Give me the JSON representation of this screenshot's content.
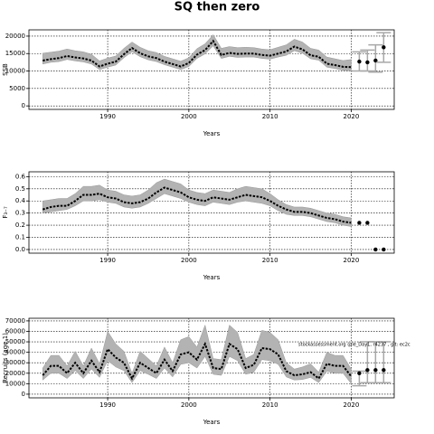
{
  "title": "SQ then zero",
  "chart_data": [
    {
      "type": "line",
      "ylabel": "SSB",
      "xlabel": "Years",
      "x": [
        1982,
        1983,
        1984,
        1985,
        1986,
        1987,
        1988,
        1989,
        1990,
        1991,
        1992,
        1993,
        1994,
        1995,
        1996,
        1997,
        1998,
        1999,
        2000,
        2001,
        2002,
        2003,
        2004,
        2005,
        2006,
        2007,
        2008,
        2009,
        2010,
        2011,
        2012,
        2013,
        2014,
        2015,
        2016,
        2017,
        2018,
        2019,
        2020
      ],
      "values": [
        13000,
        13400,
        13700,
        14300,
        13900,
        13600,
        13000,
        11300,
        12100,
        12700,
        14800,
        16600,
        15100,
        14200,
        13700,
        12700,
        12000,
        11300,
        12300,
        14700,
        16000,
        18600,
        14600,
        15200,
        14900,
        15000,
        15000,
        14600,
        14400,
        15000,
        15600,
        17000,
        16200,
        14500,
        14100,
        12100,
        11700,
        11200,
        11100
      ],
      "lower": [
        12000,
        12500,
        12700,
        13300,
        12900,
        12600,
        12000,
        10400,
        11100,
        11700,
        13800,
        15500,
        14100,
        13200,
        12700,
        11800,
        11100,
        10400,
        11300,
        13600,
        14900,
        17200,
        13600,
        14200,
        13900,
        14000,
        14000,
        13600,
        13400,
        14000,
        14500,
        15800,
        15100,
        13500,
        13100,
        11100,
        10700,
        10200,
        10000
      ],
      "upper": [
        15100,
        15400,
        15700,
        16300,
        15800,
        15500,
        14800,
        12900,
        13700,
        14300,
        16500,
        18300,
        16800,
        15800,
        15300,
        14200,
        13500,
        12800,
        13800,
        16400,
        17800,
        20400,
        16500,
        17000,
        16700,
        16800,
        16700,
        16300,
        16100,
        16800,
        17500,
        19100,
        18300,
        16500,
        16000,
        14000,
        13500,
        13000,
        13300
      ],
      "proj_x": [
        2021,
        2022,
        2023,
        2024
      ],
      "proj_values": [
        12700,
        12500,
        13000,
        16800
      ],
      "proj_lower": [
        10000,
        10000,
        9700,
        12500
      ],
      "proj_upper": [
        15500,
        16000,
        17500,
        21000
      ],
      "xlim": [
        1980.3,
        2025.3
      ],
      "ylim": [
        -1000,
        21800
      ],
      "xticks": [
        1990,
        2000,
        2010,
        2020
      ],
      "yticks": [
        0,
        5000,
        10000,
        15000,
        20000
      ],
      "grid": true,
      "color": "#000000",
      "band_color": "#b3b3b3",
      "proj_bar_color": "#a8a8a8"
    },
    {
      "type": "line",
      "ylabel": "F₃₋₇",
      "xlabel": "Years",
      "x": [
        1982,
        1983,
        1984,
        1985,
        1986,
        1987,
        1988,
        1989,
        1990,
        1991,
        1992,
        1993,
        1994,
        1995,
        1996,
        1997,
        1998,
        1999,
        2000,
        2001,
        2002,
        2003,
        2004,
        2005,
        2006,
        2007,
        2008,
        2009,
        2010,
        2011,
        2012,
        2013,
        2014,
        2015,
        2016,
        2017,
        2018,
        2019,
        2020
      ],
      "values": [
        0.33,
        0.35,
        0.36,
        0.36,
        0.4,
        0.45,
        0.45,
        0.46,
        0.43,
        0.42,
        0.39,
        0.38,
        0.39,
        0.42,
        0.47,
        0.51,
        0.49,
        0.47,
        0.43,
        0.41,
        0.4,
        0.43,
        0.42,
        0.41,
        0.43,
        0.45,
        0.44,
        0.43,
        0.4,
        0.36,
        0.33,
        0.31,
        0.31,
        0.3,
        0.28,
        0.26,
        0.25,
        0.23,
        0.22
      ],
      "lower": [
        0.3,
        0.31,
        0.32,
        0.33,
        0.36,
        0.4,
        0.4,
        0.41,
        0.39,
        0.38,
        0.35,
        0.34,
        0.35,
        0.38,
        0.42,
        0.46,
        0.44,
        0.42,
        0.39,
        0.37,
        0.36,
        0.39,
        0.38,
        0.37,
        0.39,
        0.4,
        0.39,
        0.38,
        0.36,
        0.32,
        0.29,
        0.28,
        0.28,
        0.27,
        0.25,
        0.23,
        0.22,
        0.2,
        0.19
      ],
      "upper": [
        0.4,
        0.41,
        0.42,
        0.42,
        0.46,
        0.52,
        0.52,
        0.53,
        0.49,
        0.48,
        0.45,
        0.44,
        0.45,
        0.49,
        0.55,
        0.58,
        0.56,
        0.54,
        0.49,
        0.47,
        0.46,
        0.49,
        0.48,
        0.47,
        0.5,
        0.52,
        0.51,
        0.5,
        0.46,
        0.41,
        0.37,
        0.35,
        0.35,
        0.34,
        0.32,
        0.3,
        0.29,
        0.27,
        0.26
      ],
      "proj_x": [
        2021,
        2022,
        2023,
        2024
      ],
      "proj_values": [
        0.22,
        0.22,
        0,
        0
      ],
      "xlim": [
        1980.3,
        2025.3
      ],
      "ylim": [
        -0.03,
        0.64
      ],
      "xticks": [
        1990,
        2000,
        2010,
        2020
      ],
      "yticks": [
        {
          "value": 0,
          "label": "0.0"
        },
        0.1,
        0.2,
        0.3,
        0.4,
        0.5,
        0.6
      ],
      "grid": true,
      "color": "#000000",
      "band_color": "#b3b3b3",
      "proj_bar_color": "#a8a8a8"
    },
    {
      "type": "line",
      "ylabel": "Recruits (age 1)",
      "xlabel": "Years",
      "annotation": "stockassessment.org (ple_Day1, r4237 , git: ec2c",
      "x": [
        1982,
        1983,
        1984,
        1985,
        1986,
        1987,
        1988,
        1989,
        1990,
        1991,
        1992,
        1993,
        1994,
        1995,
        1996,
        1997,
        1998,
        1999,
        2000,
        2001,
        2002,
        2003,
        2004,
        2005,
        2006,
        2007,
        2008,
        2009,
        2010,
        2011,
        2012,
        2013,
        2014,
        2015,
        2016,
        2017,
        2018,
        2019,
        2020
      ],
      "values": [
        18000,
        27000,
        27000,
        20000,
        30000,
        20000,
        32000,
        21000,
        43000,
        35000,
        30000,
        15000,
        30000,
        25000,
        20000,
        33000,
        22000,
        38000,
        40000,
        33000,
        48000,
        25000,
        24000,
        48000,
        43000,
        25000,
        28000,
        44000,
        43000,
        38000,
        22000,
        18000,
        19000,
        21000,
        15000,
        29000,
        27000,
        27000,
        17000
      ],
      "lower": [
        13500,
        20000,
        20000,
        15000,
        22500,
        15000,
        24000,
        16000,
        32000,
        26000,
        22500,
        11000,
        22500,
        19000,
        15000,
        25000,
        16500,
        28500,
        30000,
        25000,
        36000,
        19000,
        18000,
        36000,
        32000,
        19000,
        21000,
        33000,
        32000,
        28500,
        16500,
        13500,
        14000,
        16000,
        11000,
        22000,
        20000,
        20000,
        10000
      ],
      "upper": [
        25000,
        37000,
        37000,
        27000,
        41000,
        27000,
        44000,
        29000,
        60000,
        48000,
        41000,
        20000,
        41000,
        34000,
        27000,
        45000,
        30000,
        52000,
        55000,
        45000,
        66000,
        34000,
        33000,
        66000,
        59000,
        34000,
        38000,
        61000,
        59000,
        52000,
        30000,
        24000,
        26000,
        29000,
        21000,
        40000,
        37000,
        37000,
        24000
      ],
      "proj_x": [
        2021,
        2022,
        2023,
        2024
      ],
      "proj_values": [
        20000,
        23000,
        23000,
        23000
      ],
      "proj_lower": [
        8000,
        11000,
        11000,
        11000
      ],
      "proj_upper": [
        22000,
        50000,
        50000,
        50000
      ],
      "xlim": [
        1980.3,
        2025.3
      ],
      "ylim": [
        -3500,
        72500
      ],
      "xticks": [
        1990,
        2000,
        2010,
        2020
      ],
      "yticks": [
        0,
        10000,
        20000,
        30000,
        40000,
        50000,
        60000,
        70000
      ],
      "grid": true,
      "color": "#000000",
      "band_color": "#b3b3b3",
      "proj_bar_color": "#a8a8a8"
    }
  ]
}
